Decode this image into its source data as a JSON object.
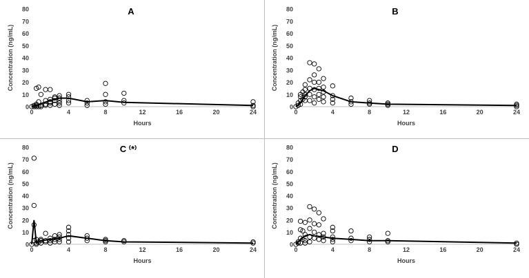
{
  "chart_data": [
    {
      "type": "scatter",
      "title": "A",
      "xlabel": "Hours",
      "ylabel": "Concentration (ng/mL)",
      "xlim": [
        0,
        24
      ],
      "ylim": [
        0,
        80
      ],
      "xticks": [
        0,
        4,
        8,
        12,
        16,
        20,
        24
      ],
      "yticks": [
        0,
        10,
        20,
        30,
        40,
        50,
        60,
        70,
        80
      ],
      "grid": false,
      "points": [
        [
          0,
          0
        ],
        [
          0.25,
          0
        ],
        [
          0.25,
          1
        ],
        [
          0.5,
          0
        ],
        [
          0.5,
          1
        ],
        [
          0.5,
          15
        ],
        [
          0.5,
          2
        ],
        [
          0.75,
          16
        ],
        [
          0.75,
          4
        ],
        [
          0.75,
          0
        ],
        [
          1,
          0
        ],
        [
          1,
          10
        ],
        [
          1,
          1
        ],
        [
          1.5,
          14
        ],
        [
          1.5,
          2
        ],
        [
          1.5,
          1
        ],
        [
          1.5,
          5
        ],
        [
          2,
          14
        ],
        [
          2,
          6
        ],
        [
          2,
          3
        ],
        [
          2,
          1
        ],
        [
          2,
          4
        ],
        [
          2.5,
          7
        ],
        [
          2.5,
          5
        ],
        [
          2.5,
          2
        ],
        [
          2.5,
          8
        ],
        [
          3,
          9
        ],
        [
          3,
          7
        ],
        [
          3,
          3
        ],
        [
          3,
          5
        ],
        [
          3,
          1
        ],
        [
          4,
          10
        ],
        [
          4,
          8
        ],
        [
          4,
          5
        ],
        [
          4,
          3
        ],
        [
          6,
          5
        ],
        [
          6,
          3
        ],
        [
          6,
          1
        ],
        [
          8,
          19
        ],
        [
          8,
          10
        ],
        [
          8,
          4
        ],
        [
          8,
          2
        ],
        [
          10,
          11
        ],
        [
          10,
          5
        ],
        [
          10,
          3
        ],
        [
          24,
          4
        ],
        [
          24,
          1
        ],
        [
          24,
          0
        ]
      ],
      "mean_line": [
        [
          0,
          0
        ],
        [
          0.5,
          1
        ],
        [
          1,
          2.5
        ],
        [
          2,
          5
        ],
        [
          3,
          7
        ],
        [
          4,
          7
        ],
        [
          6,
          4
        ],
        [
          8,
          5
        ],
        [
          10,
          3.5
        ],
        [
          24,
          1
        ]
      ]
    },
    {
      "type": "scatter",
      "title": "B",
      "xlabel": "Hours",
      "ylabel": "Concentration (ng/mL)",
      "xlim": [
        0,
        24
      ],
      "ylim": [
        0,
        80
      ],
      "xticks": [
        0,
        4,
        8,
        12,
        16,
        20,
        24
      ],
      "yticks": [
        0,
        10,
        20,
        30,
        40,
        50,
        60,
        70,
        80
      ],
      "grid": false,
      "points": [
        [
          0,
          0
        ],
        [
          0.25,
          1
        ],
        [
          0.25,
          3
        ],
        [
          0.5,
          5
        ],
        [
          0.5,
          8
        ],
        [
          0.5,
          2
        ],
        [
          0.5,
          10
        ],
        [
          0.75,
          12
        ],
        [
          0.75,
          6
        ],
        [
          1,
          14
        ],
        [
          1,
          10
        ],
        [
          1,
          8
        ],
        [
          1,
          5
        ],
        [
          1,
          18
        ],
        [
          1.5,
          36
        ],
        [
          1.5,
          22
        ],
        [
          1.5,
          15
        ],
        [
          1.5,
          10
        ],
        [
          1.5,
          5
        ],
        [
          2,
          35
        ],
        [
          2,
          26
        ],
        [
          2,
          20
        ],
        [
          2,
          14
        ],
        [
          2,
          8
        ],
        [
          2,
          3
        ],
        [
          2.5,
          31
        ],
        [
          2.5,
          20
        ],
        [
          2.5,
          15
        ],
        [
          2.5,
          10
        ],
        [
          2.5,
          6
        ],
        [
          3,
          23
        ],
        [
          3,
          16
        ],
        [
          3,
          12
        ],
        [
          3,
          8
        ],
        [
          3,
          4
        ],
        [
          4,
          17
        ],
        [
          4,
          9
        ],
        [
          4,
          6
        ],
        [
          4,
          3
        ],
        [
          6,
          7
        ],
        [
          6,
          4
        ],
        [
          6,
          2
        ],
        [
          8,
          5
        ],
        [
          8,
          3
        ],
        [
          8,
          2
        ],
        [
          10,
          3
        ],
        [
          10,
          2
        ],
        [
          10,
          1
        ],
        [
          24,
          2
        ],
        [
          24,
          1
        ],
        [
          24,
          0
        ]
      ],
      "mean_line": [
        [
          0,
          0
        ],
        [
          0.5,
          3
        ],
        [
          1,
          9
        ],
        [
          1.5,
          13
        ],
        [
          2,
          15
        ],
        [
          3,
          13
        ],
        [
          4,
          9
        ],
        [
          6,
          4
        ],
        [
          8,
          3
        ],
        [
          10,
          2
        ],
        [
          24,
          1
        ]
      ]
    },
    {
      "type": "scatter",
      "title": "C ⁽*⁾",
      "xlabel": "Hours",
      "ylabel": "Concentration (ng/mL)",
      "xlim": [
        0,
        24
      ],
      "ylim": [
        0,
        80
      ],
      "xticks": [
        0,
        4,
        8,
        12,
        16,
        20,
        24
      ],
      "yticks": [
        0,
        10,
        20,
        30,
        40,
        50,
        60,
        70,
        80
      ],
      "grid": false,
      "points": [
        [
          0,
          0
        ],
        [
          0.25,
          71
        ],
        [
          0.25,
          32
        ],
        [
          0.25,
          16
        ],
        [
          0.25,
          3
        ],
        [
          0.5,
          1
        ],
        [
          0.5,
          4
        ],
        [
          0.5,
          0
        ],
        [
          0.75,
          2
        ],
        [
          1,
          3
        ],
        [
          1,
          1
        ],
        [
          1,
          4
        ],
        [
          1.5,
          9
        ],
        [
          1.5,
          2
        ],
        [
          1.5,
          3
        ],
        [
          2,
          5
        ],
        [
          2,
          3
        ],
        [
          2,
          1
        ],
        [
          2.5,
          7
        ],
        [
          2.5,
          4
        ],
        [
          2.5,
          2
        ],
        [
          3,
          8
        ],
        [
          3,
          6
        ],
        [
          3,
          4
        ],
        [
          3,
          2
        ],
        [
          4,
          14
        ],
        [
          4,
          11
        ],
        [
          4,
          8
        ],
        [
          4,
          5
        ],
        [
          4,
          2
        ],
        [
          6,
          7
        ],
        [
          6,
          5
        ],
        [
          6,
          3
        ],
        [
          8,
          4
        ],
        [
          8,
          3
        ],
        [
          8,
          2
        ],
        [
          10,
          3
        ],
        [
          10,
          2
        ],
        [
          24,
          2
        ],
        [
          24,
          1
        ]
      ],
      "mean_line": [
        [
          0,
          0
        ],
        [
          0.25,
          20
        ],
        [
          0.5,
          1
        ],
        [
          1,
          3
        ],
        [
          2,
          4
        ],
        [
          3,
          5
        ],
        [
          4,
          7
        ],
        [
          6,
          5
        ],
        [
          8,
          3
        ],
        [
          10,
          2
        ],
        [
          24,
          1
        ]
      ]
    },
    {
      "type": "scatter",
      "title": "D",
      "xlabel": "Hours",
      "ylabel": "Concentration (ng/mL)",
      "xlim": [
        0,
        24
      ],
      "ylim": [
        0,
        80
      ],
      "xticks": [
        0,
        4,
        8,
        12,
        16,
        20,
        24
      ],
      "yticks": [
        0,
        10,
        20,
        30,
        40,
        50,
        60,
        70,
        80
      ],
      "grid": false,
      "points": [
        [
          0,
          0
        ],
        [
          0.25,
          1
        ],
        [
          0.25,
          2
        ],
        [
          0.5,
          12
        ],
        [
          0.5,
          19
        ],
        [
          0.5,
          5
        ],
        [
          0.5,
          1
        ],
        [
          0.75,
          11
        ],
        [
          0.75,
          4
        ],
        [
          1,
          18
        ],
        [
          1,
          8
        ],
        [
          1,
          3
        ],
        [
          1,
          1
        ],
        [
          1.5,
          31
        ],
        [
          1.5,
          20
        ],
        [
          1.5,
          13
        ],
        [
          1.5,
          6
        ],
        [
          1.5,
          2
        ],
        [
          2,
          29
        ],
        [
          2,
          17
        ],
        [
          2,
          10
        ],
        [
          2,
          5
        ],
        [
          2.5,
          26
        ],
        [
          2.5,
          16
        ],
        [
          2.5,
          8
        ],
        [
          2.5,
          4
        ],
        [
          3,
          21
        ],
        [
          3,
          9
        ],
        [
          3,
          6
        ],
        [
          3,
          3
        ],
        [
          4,
          14
        ],
        [
          4,
          11
        ],
        [
          4,
          6
        ],
        [
          4,
          4
        ],
        [
          4,
          2
        ],
        [
          6,
          11
        ],
        [
          6,
          5
        ],
        [
          6,
          3
        ],
        [
          8,
          6
        ],
        [
          8,
          4
        ],
        [
          8,
          2
        ],
        [
          10,
          9
        ],
        [
          10,
          3
        ],
        [
          10,
          2
        ],
        [
          24,
          1
        ],
        [
          24,
          0
        ]
      ],
      "mean_line": [
        [
          0,
          0
        ],
        [
          0.5,
          4
        ],
        [
          1,
          7
        ],
        [
          1.5,
          8
        ],
        [
          2,
          7
        ],
        [
          3,
          6
        ],
        [
          4,
          5
        ],
        [
          6,
          4
        ],
        [
          8,
          3
        ],
        [
          10,
          3
        ],
        [
          24,
          1
        ]
      ]
    }
  ]
}
